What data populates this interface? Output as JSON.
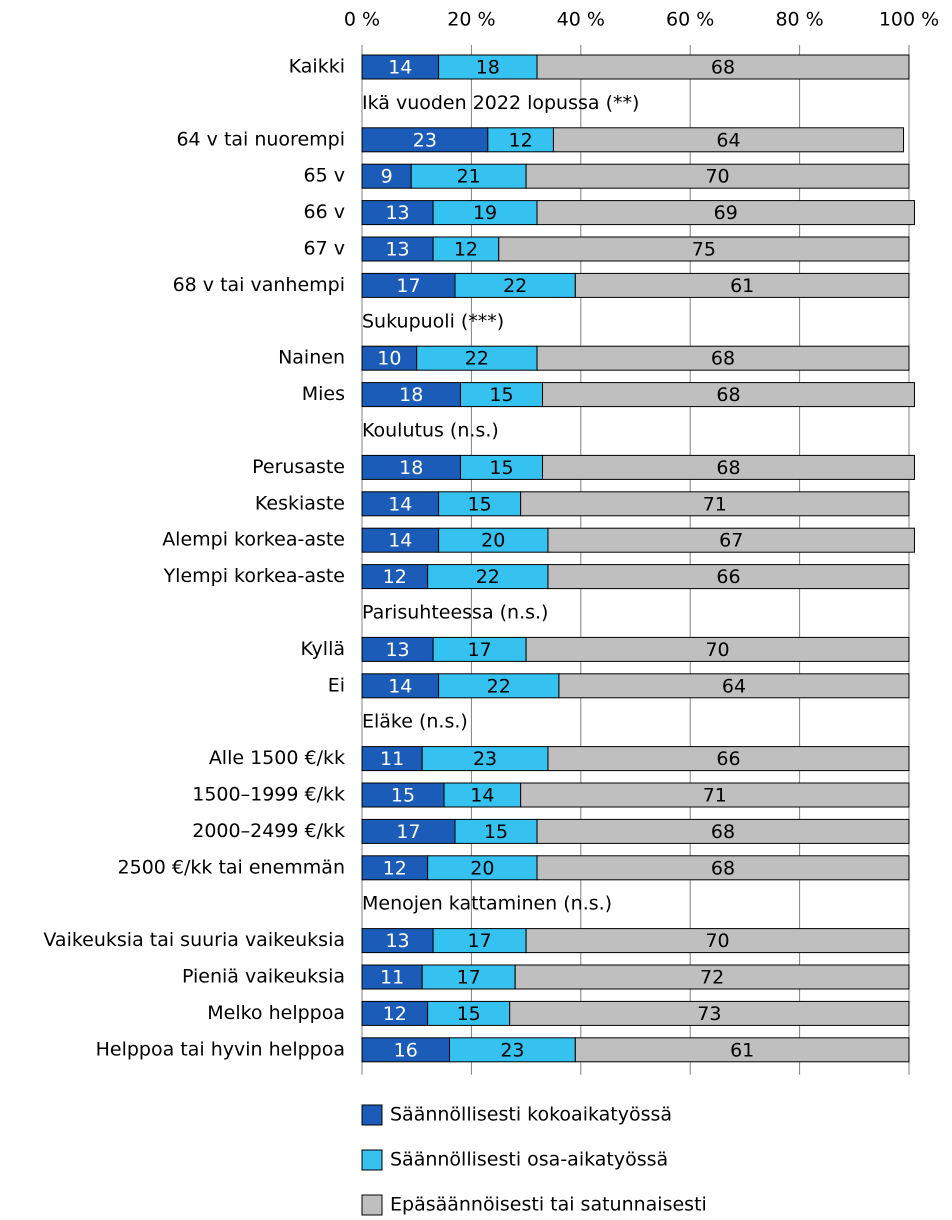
{
  "chart_data": {
    "type": "stacked_bar_horizontal",
    "categories": [
      "Kaikki",
      "Ikä vuoden 2022 lopussa (**)",
      "64 v tai nuorempi",
      "65 v",
      "66 v",
      "67 v",
      "68 v tai vanhempi",
      "Sukupuoli (***)",
      "Nainen",
      "Mies",
      "Koulutus (n.s.)",
      "Perusaste",
      "Keskiaste",
      "Alempi korkea-aste",
      "Ylempi korkea-aste",
      "Parisuhteessa (n.s.)",
      "Kyllä",
      "Ei",
      "Eläke (n.s.)",
      "Alle 1500 €/kk",
      "1500–1999 €/kk",
      "2000–2499 €/kk",
      "2500 €/kk tai enemmän",
      "Menojen kattaminen (n.s.)",
      "Vaikeuksia tai suuria vaikeuksia",
      "Pieniä vaikeuksia",
      "Melko helppoa",
      "Helppoa tai hyvin helppoa"
    ],
    "series": [
      {
        "name": "Säännöllisesti kokoaikatyössä",
        "color": "#1b5cb8",
        "label_color": "#ffffff",
        "values": [
          14,
          null,
          23,
          9,
          13,
          13,
          17,
          null,
          10,
          18,
          null,
          18,
          14,
          14,
          12,
          null,
          13,
          14,
          null,
          11,
          15,
          17,
          12,
          null,
          13,
          11,
          12,
          16
        ]
      },
      {
        "name": "Säännöllisesti osa-aikatyössä",
        "color": "#35c2f0",
        "label_color": "#000000",
        "values": [
          18,
          null,
          12,
          21,
          19,
          12,
          22,
          null,
          22,
          15,
          null,
          15,
          15,
          20,
          22,
          null,
          17,
          22,
          null,
          23,
          14,
          15,
          20,
          null,
          17,
          17,
          15,
          23
        ]
      },
      {
        "name": "Epäsäännöisesti tai satunnaisesti",
        "color": "#bfbfbf",
        "label_color": "#000000",
        "values": [
          68,
          null,
          64,
          70,
          69,
          75,
          61,
          null,
          68,
          68,
          null,
          68,
          71,
          67,
          66,
          null,
          70,
          64,
          null,
          66,
          71,
          68,
          68,
          null,
          70,
          72,
          73,
          61
        ]
      }
    ],
    "xlim": [
      0,
      100
    ],
    "xticks": [
      {
        "value": 0,
        "label": "0 %"
      },
      {
        "value": 20,
        "label": "20 %"
      },
      {
        "value": 40,
        "label": "40 %"
      },
      {
        "value": 60,
        "label": "60 %"
      },
      {
        "value": 80,
        "label": "80 %"
      },
      {
        "value": 100,
        "label": "100 %"
      }
    ],
    "grid": true
  }
}
